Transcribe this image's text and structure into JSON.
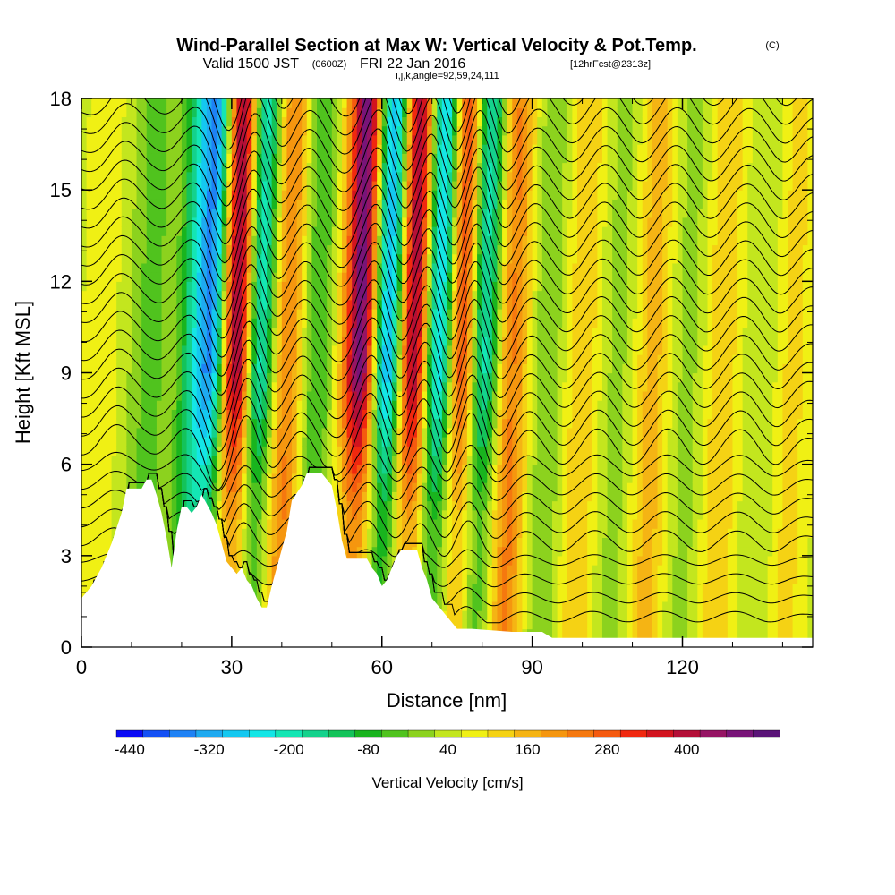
{
  "title": {
    "main": "Wind-Parallel Section at Max W: Vertical Velocity & Pot.Temp.",
    "copyright": "(C)",
    "valid_prefix": "Valid 1500 JST",
    "valid_zulu": "(0600Z)",
    "valid_date": "FRI 22 Jan 2016",
    "forecast": "[12hrFcst@2313z]",
    "indices": "i,j,k,angle=92,59,24,111"
  },
  "colorbar": {
    "label": "Vertical Velocity [cm/s]",
    "tick_labels": [
      "-440",
      "-320",
      "-200",
      "-80",
      "40",
      "160",
      "280",
      "400"
    ],
    "colors": [
      "#0a0af5",
      "#1450f5",
      "#1e82f5",
      "#1eaaf0",
      "#14c8f0",
      "#14e6e6",
      "#14e6b4",
      "#14d28c",
      "#14c35a",
      "#19b41e",
      "#50c31e",
      "#8cd21e",
      "#c3e61e",
      "#f0f014",
      "#f5d214",
      "#f5b414",
      "#f5960f",
      "#f5780f",
      "#f55a0f",
      "#f0280f",
      "#d2141e",
      "#b40f37",
      "#961464",
      "#781478",
      "#5a1478"
    ]
  },
  "chart_data": {
    "type": "heatmap",
    "title": "Wind-Parallel Section at Max W: Vertical Velocity & Pot.Temp.",
    "xlabel": "Distance [nm]",
    "ylabel": "Height [Kft MSL]",
    "xlim": [
      0,
      146
    ],
    "ylim": [
      0,
      18
    ],
    "x_ticks": [
      0,
      30,
      60,
      90,
      120
    ],
    "y_ticks": [
      0,
      3,
      6,
      9,
      12,
      15,
      18
    ],
    "value_range": [
      -440,
      460
    ],
    "value_units": "cm/s",
    "contour_field": "Potential temperature",
    "w_bands": [
      {
        "x": 4,
        "w": 40,
        "width": 3
      },
      {
        "x": 10,
        "w": -20,
        "width": 3
      },
      {
        "x": 14,
        "w": -80,
        "width": 3
      },
      {
        "x": 22,
        "w": -160,
        "width": 3
      },
      {
        "x": 26,
        "w": -360,
        "width": 3
      },
      {
        "x": 31,
        "w": 420,
        "width": 3.5
      },
      {
        "x": 35,
        "w": -320,
        "width": 3
      },
      {
        "x": 41,
        "w": 160,
        "width": 3
      },
      {
        "x": 47,
        "w": -100,
        "width": 3
      },
      {
        "x": 56,
        "w": 440,
        "width": 3.5
      },
      {
        "x": 61,
        "w": -440,
        "width": 3.5
      },
      {
        "x": 66,
        "w": 420,
        "width": 3.5
      },
      {
        "x": 71,
        "w": -360,
        "width": 3
      },
      {
        "x": 76,
        "w": 280,
        "width": 3
      },
      {
        "x": 80,
        "w": -260,
        "width": 3
      },
      {
        "x": 86,
        "w": 160,
        "width": 3
      },
      {
        "x": 93,
        "w": -60,
        "width": 3
      },
      {
        "x": 100,
        "w": 80,
        "width": 3
      },
      {
        "x": 107,
        "w": -40,
        "width": 3
      },
      {
        "x": 114,
        "w": 100,
        "width": 3
      },
      {
        "x": 121,
        "w": -40,
        "width": 3
      },
      {
        "x": 128,
        "w": 80,
        "width": 3
      },
      {
        "x": 136,
        "w": -20,
        "width": 3
      },
      {
        "x": 142,
        "w": 60,
        "width": 3
      }
    ],
    "terrain_height_kft": [
      [
        0,
        1.6
      ],
      [
        2,
        2.0
      ],
      [
        4,
        2.6
      ],
      [
        6,
        3.4
      ],
      [
        8,
        4.4
      ],
      [
        9,
        5.2
      ],
      [
        12,
        5.2
      ],
      [
        13,
        5.5
      ],
      [
        14,
        5.5
      ],
      [
        15,
        5.0
      ],
      [
        16,
        4.4
      ],
      [
        17,
        3.6
      ],
      [
        18,
        2.6
      ],
      [
        19,
        3.8
      ],
      [
        20,
        4.6
      ],
      [
        21,
        4.6
      ],
      [
        22,
        4.4
      ],
      [
        23,
        4.6
      ],
      [
        24,
        5.0
      ],
      [
        25,
        4.7
      ],
      [
        26,
        4.4
      ],
      [
        27,
        4.0
      ],
      [
        28,
        3.4
      ],
      [
        29,
        2.8
      ],
      [
        30,
        2.6
      ],
      [
        31,
        2.4
      ],
      [
        32,
        2.6
      ],
      [
        33,
        2.2
      ],
      [
        34,
        2.0
      ],
      [
        35,
        1.6
      ],
      [
        36,
        1.3
      ],
      [
        37,
        1.3
      ],
      [
        38,
        2.0
      ],
      [
        39,
        2.6
      ],
      [
        40,
        3.2
      ],
      [
        41,
        3.8
      ],
      [
        42,
        4.8
      ],
      [
        44,
        5.3
      ],
      [
        45,
        5.7
      ],
      [
        48,
        5.7
      ],
      [
        50,
        5.3
      ],
      [
        51,
        4.5
      ],
      [
        52,
        3.5
      ],
      [
        53,
        2.9
      ],
      [
        54,
        2.9
      ],
      [
        57,
        2.9
      ],
      [
        58,
        2.6
      ],
      [
        59,
        2.4
      ],
      [
        60,
        2.0
      ],
      [
        61,
        2.2
      ],
      [
        62,
        2.6
      ],
      [
        63,
        3.0
      ],
      [
        64,
        3.2
      ],
      [
        67,
        3.2
      ],
      [
        68,
        2.6
      ],
      [
        69,
        2.2
      ],
      [
        70,
        1.6
      ],
      [
        72,
        1.2
      ],
      [
        74,
        0.8
      ],
      [
        75,
        0.6
      ],
      [
        78,
        0.6
      ],
      [
        86,
        0.5
      ],
      [
        92,
        0.5
      ],
      [
        94,
        0.3
      ],
      [
        146,
        0.3
      ]
    ]
  },
  "axis_labels": {
    "x": "Distance [nm]",
    "y": "Height [Kft MSL]",
    "x_tick_labels": [
      "0",
      "30",
      "60",
      "90",
      "120"
    ],
    "y_tick_labels": [
      "0",
      "3",
      "6",
      "9",
      "12",
      "15",
      "18"
    ]
  }
}
